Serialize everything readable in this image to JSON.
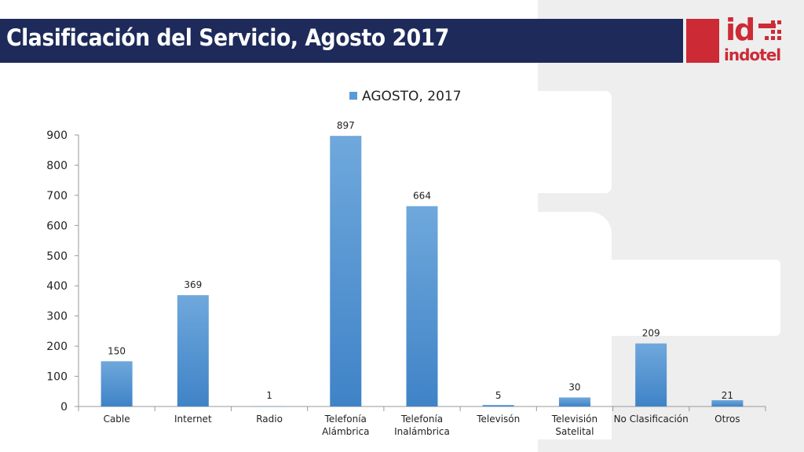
{
  "header": {
    "title": "Clasificación del Servicio, Agosto 2017",
    "logo_short": "id",
    "logo_name": "indotel"
  },
  "colors": {
    "title_bar": "#1d2a5a",
    "brand_red": "#cc2b36",
    "bar": "#5b9bd5"
  },
  "chart_data": {
    "type": "bar",
    "categories": [
      "Cable",
      "Internet",
      "Radio",
      "Telefonía Alámbrica",
      "Telefonía Inalámbrica",
      "Televisón",
      "Televisión Satelital",
      "No Clasificación",
      "Otros"
    ],
    "category_lines": [
      [
        "Cable"
      ],
      [
        "Internet"
      ],
      [
        "Radio"
      ],
      [
        "Telefonía",
        "Alámbrica"
      ],
      [
        "Telefonía",
        "Inalámbrica"
      ],
      [
        "Televisón"
      ],
      [
        "Televisión",
        "Satelital"
      ],
      [
        "No Clasificación"
      ],
      [
        "Otros"
      ]
    ],
    "series": [
      {
        "name": "AGOSTO, 2017",
        "values": [
          150,
          369,
          1,
          897,
          664,
          5,
          30,
          209,
          21
        ]
      }
    ],
    "yticks": [
      0,
      100,
      200,
      300,
      400,
      500,
      600,
      700,
      800,
      900
    ],
    "ylim": [
      0,
      900
    ],
    "legend_position": "top",
    "grid": false,
    "data_labels": true
  }
}
